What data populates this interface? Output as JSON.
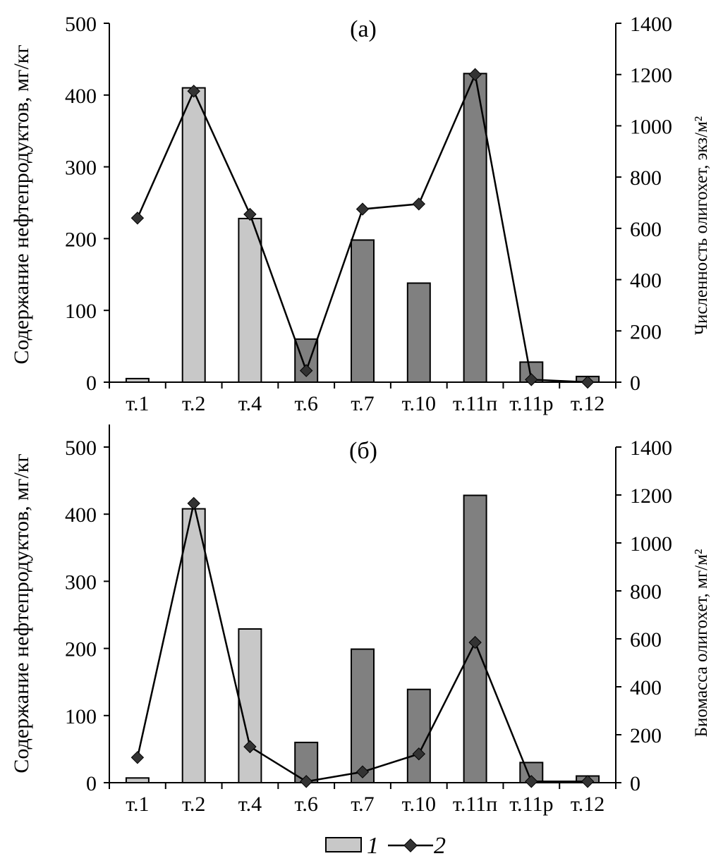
{
  "chart_data": [
    {
      "type": "bar",
      "panel_label": "(а)",
      "categories": [
        "т.1",
        "т.2",
        "т.4",
        "т.6",
        "т.7",
        "т.10",
        "т.11п",
        "т.11р",
        "т.12"
      ],
      "ylabel": "Содержание нефтепродуктов, мг/кг",
      "y2label": "Численность олигохет, экз/м²",
      "ylim": [
        0,
        500
      ],
      "yticks": [
        "0",
        "100",
        "200",
        "300",
        "400",
        "500"
      ],
      "y2lim": [
        0,
        1400
      ],
      "y2ticks": [
        "0",
        "200",
        "400",
        "600",
        "800",
        "1000",
        "1200",
        "1400"
      ],
      "series": [
        {
          "name": "1",
          "type": "bar",
          "axis": "left",
          "values": [
            5,
            410,
            228,
            60,
            198,
            138,
            430,
            28,
            8
          ]
        },
        {
          "name": "2",
          "type": "line",
          "axis": "right",
          "values": [
            640,
            1135,
            655,
            45,
            675,
            695,
            1200,
            10,
            0
          ]
        }
      ],
      "bar_colors": [
        "#c8c8c8",
        "#c8c8c8",
        "#c8c8c8",
        "#808080",
        "#808080",
        "#808080",
        "#808080",
        "#808080",
        "#808080"
      ]
    },
    {
      "type": "bar",
      "panel_label": "(б)",
      "categories": [
        "т.1",
        "т.2",
        "т.4",
        "т.6",
        "т.7",
        "т.10",
        "т.11п",
        "т.11р",
        "т.12"
      ],
      "ylabel": "Содержание нефтепродуктов, мг/кг",
      "y2label": "Биомасса олигохет, мг/м²",
      "ylim": [
        0,
        500
      ],
      "yticks": [
        "0",
        "100",
        "200",
        "300",
        "400",
        "500"
      ],
      "y2lim": [
        0,
        1400
      ],
      "y2ticks": [
        "0",
        "200",
        "400",
        "600",
        "800",
        "1000",
        "1200",
        "1400"
      ],
      "series": [
        {
          "name": "1",
          "type": "bar",
          "axis": "left",
          "values": [
            7,
            408,
            229,
            60,
            199,
            139,
            428,
            30,
            10
          ]
        },
        {
          "name": "2",
          "type": "line",
          "axis": "right",
          "values": [
            105,
            1165,
            150,
            5,
            45,
            120,
            585,
            5,
            5
          ]
        }
      ],
      "bar_colors": [
        "#c8c8c8",
        "#c8c8c8",
        "#c8c8c8",
        "#808080",
        "#808080",
        "#808080",
        "#808080",
        "#808080",
        "#808080"
      ]
    }
  ],
  "legend": [
    {
      "label": "1",
      "kind": "bar"
    },
    {
      "label": "2",
      "kind": "line"
    }
  ],
  "colors": {
    "light_bar": "#c8c8c8",
    "dark_bar": "#808080",
    "line": "#000000"
  }
}
